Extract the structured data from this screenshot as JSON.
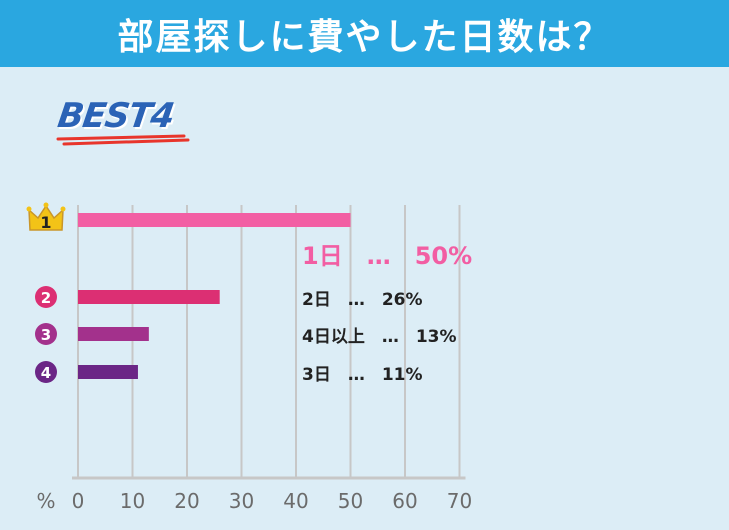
{
  "title": "部屋探しに費やした日数は？",
  "badge": "BEST4",
  "colors": {
    "header": "#2aa7e0",
    "background": "#dcedf6",
    "rank1": "#f25ea3",
    "rank2": "#dc2f73",
    "rank3": "#a3318c",
    "rank4": "#6b2686",
    "crown": "#f3c317",
    "grid": "#c7c7c7"
  },
  "chart_data": {
    "type": "bar",
    "orientation": "horizontal",
    "axis_unit_label": "%",
    "xlim": [
      0,
      70
    ],
    "xticks": [
      0,
      10,
      20,
      30,
      40,
      50,
      60,
      70
    ],
    "grid": true,
    "entries": [
      {
        "rank": "1",
        "category": "1日",
        "value": 50,
        "label": "1日　…　50%"
      },
      {
        "rank": "2",
        "category": "2日",
        "value": 26,
        "label": "2日　…　26%"
      },
      {
        "rank": "3",
        "category": "4日以上",
        "value": 13,
        "label": "4日以上　…　13%"
      },
      {
        "rank": "4",
        "category": "3日",
        "value": 11,
        "label": "3日　…　11%"
      }
    ]
  }
}
